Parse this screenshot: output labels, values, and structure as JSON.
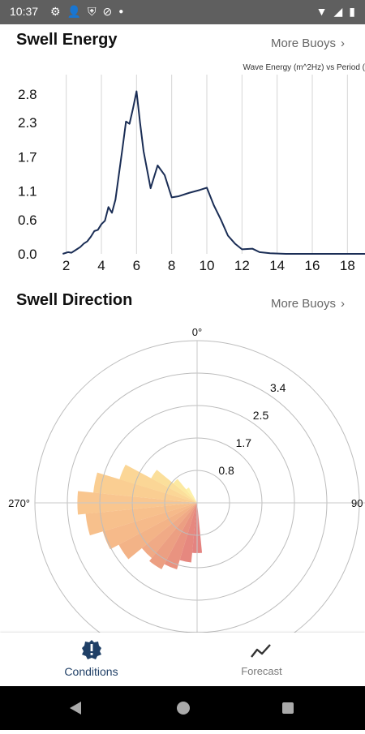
{
  "status": {
    "time": "10:37"
  },
  "energy": {
    "title": "Swell Energy",
    "more": "More Buoys",
    "caption": "Wave Energy (m^2Hz) vs Period (",
    "chart_data": {
      "type": "line",
      "y_ticks": [
        0.0,
        0.6,
        1.1,
        1.7,
        2.3,
        2.8
      ],
      "y_tick_labels": [
        "0.0",
        "0.6",
        "1.1",
        "1.7",
        "2.3",
        "2.8"
      ],
      "x_ticks": [
        "2",
        "4",
        "6",
        "8",
        "10",
        "12",
        "14",
        "16",
        "18"
      ],
      "ylim": [
        0,
        3.0
      ],
      "xlim": [
        1,
        19
      ],
      "grid": "vertical",
      "x": [
        1.8,
        2.1,
        2.3,
        2.6,
        2.8,
        3.0,
        3.2,
        3.4,
        3.6,
        3.8,
        4.0,
        4.2,
        4.4,
        4.6,
        4.8,
        5.0,
        5.2,
        5.4,
        5.6,
        5.8,
        6.0,
        6.2,
        6.4,
        6.8,
        7.2,
        7.6,
        8.0,
        8.4,
        9.0,
        9.6,
        10.0,
        10.4,
        10.8,
        11.2,
        11.6,
        12.0,
        12.6,
        13.0,
        13.6,
        14.5,
        16,
        18,
        19
      ],
      "y": [
        0.0,
        0.03,
        0.02,
        0.08,
        0.12,
        0.18,
        0.22,
        0.3,
        0.4,
        0.42,
        0.52,
        0.58,
        0.82,
        0.72,
        0.95,
        1.4,
        1.85,
        2.32,
        2.28,
        2.55,
        2.85,
        2.3,
        1.8,
        1.15,
        1.55,
        1.38,
        0.99,
        1.01,
        1.07,
        1.12,
        1.16,
        0.85,
        0.6,
        0.32,
        0.18,
        0.08,
        0.09,
        0.03,
        0.01,
        0.0,
        0.0,
        0.0,
        0.0
      ]
    }
  },
  "direction": {
    "title": "Swell Direction",
    "more": "More Buoys",
    "chart_data": {
      "type": "polar-bar",
      "angle_labels": [
        "0°",
        "270°",
        "90"
      ],
      "radial_ticks": [
        "0.8",
        "1.7",
        "2.5",
        "3.4"
      ],
      "rmax": 4.2,
      "bars": [
        {
          "angle": 180,
          "value": 1.3,
          "color": "#d9534f"
        },
        {
          "angle": 191.25,
          "value": 1.55,
          "color": "#dc5a4d"
        },
        {
          "angle": 202.5,
          "value": 1.8,
          "color": "#e06a4f"
        },
        {
          "angle": 213.75,
          "value": 1.95,
          "color": "#e57a52"
        },
        {
          "angle": 225,
          "value": 1.85,
          "color": "#ea8957"
        },
        {
          "angle": 236.25,
          "value": 2.3,
          "color": "#ef9659"
        },
        {
          "angle": 247.5,
          "value": 2.55,
          "color": "#f29f5d"
        },
        {
          "angle": 258.75,
          "value": 2.9,
          "color": "#f4a760"
        },
        {
          "angle": 270,
          "value": 3.1,
          "color": "#f6b064"
        },
        {
          "angle": 281.25,
          "value": 2.7,
          "color": "#f8bb68"
        },
        {
          "angle": 292.5,
          "value": 2.1,
          "color": "#f9c66d"
        },
        {
          "angle": 303.75,
          "value": 1.35,
          "color": "#fad374"
        },
        {
          "angle": 315,
          "value": 0.8,
          "color": "#fbe07d"
        },
        {
          "angle": 326.25,
          "value": 0.45,
          "color": "#fcec88"
        }
      ]
    }
  },
  "nav": {
    "conditions": "Conditions",
    "forecast": "Forecast",
    "active_color": "#1f3f66",
    "inactive_color": "#7a7a7a"
  }
}
